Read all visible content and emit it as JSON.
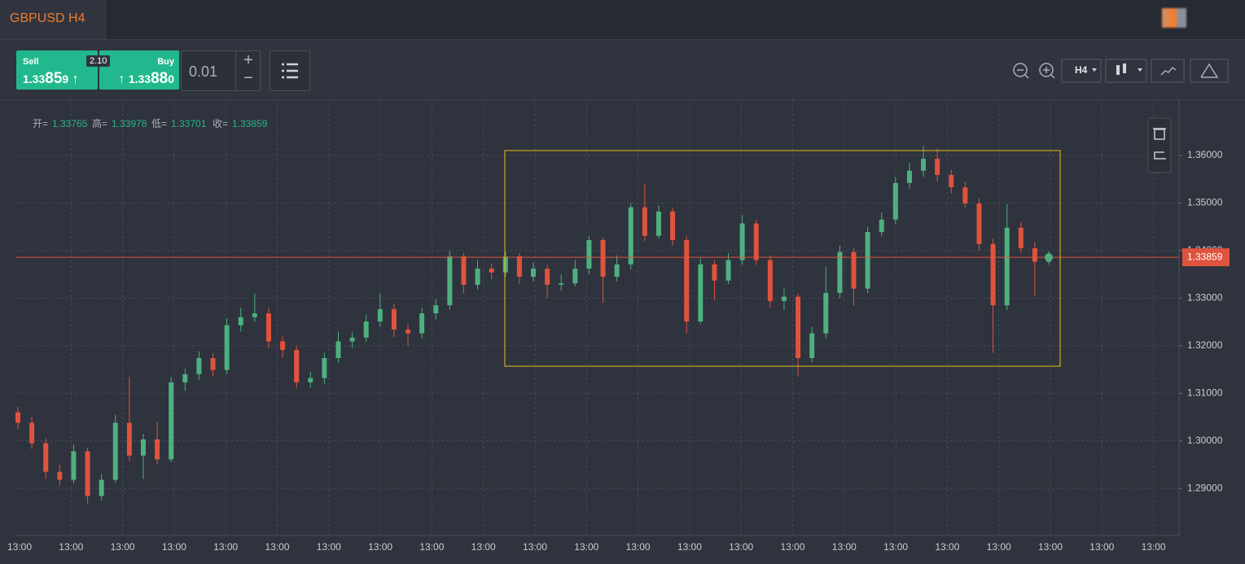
{
  "header": {
    "tab": "GBPUSD H4"
  },
  "trade": {
    "sell_label": "Sell",
    "sell_price": [
      "1.33",
      "85",
      "9"
    ],
    "spread": "2.10",
    "buy_label": "Buy",
    "buy_price": [
      "1.33",
      "88",
      "0"
    ],
    "lot": "0.01",
    "timeframe": "H4"
  },
  "ohlc_info": {
    "open_label": "开=",
    "high_label": "高=",
    "low_label": "低=",
    "close_label": "收="
  },
  "chart_data": {
    "type": "candlestick",
    "x_labels": [
      "13:00",
      "13:00",
      "13:00",
      "13:00",
      "13:00",
      "13:00",
      "13:00",
      "13:00",
      "13:00",
      "13:00",
      "13:00",
      "13:00",
      "13:00",
      "13:00",
      "13:00",
      "13:00",
      "13:00",
      "13:00",
      "13:00",
      "13:00",
      "13:00",
      "13:00",
      "13:00"
    ],
    "open": [
      1.306,
      1.3038,
      1.2995,
      1.2935,
      1.2918,
      1.2978,
      1.2884,
      1.2918,
      1.3038,
      1.2969,
      1.3003,
      1.2961,
      1.3123,
      1.314,
      1.3174,
      1.3149,
      1.3243,
      1.326,
      1.3268,
      1.3209,
      1.3191,
      1.3123,
      1.3132,
      1.3174,
      1.3209,
      1.3217,
      1.3251,
      1.3277,
      1.3234,
      1.3226,
      1.3268,
      1.3285,
      1.3388,
      1.3328,
      1.3362,
      1.3354,
      1.3388,
      1.3345,
      1.3362,
      1.3328,
      1.3331,
      1.3362,
      1.3422,
      1.3345,
      1.3371,
      1.3491,
      1.3431,
      1.3482,
      1.3422,
      1.3251,
      1.3371,
      1.3337,
      1.338,
      1.3457,
      1.338,
      1.3294,
      1.3303,
      1.3174,
      1.3226,
      1.3311,
      1.3397,
      1.332,
      1.3439,
      1.3465,
      1.3542,
      1.3568,
      1.3593,
      1.3559,
      1.3533,
      1.3499,
      1.3414,
      1.3285,
      1.3448,
      1.3405,
      1.33765
    ],
    "high": [
      1.3072,
      1.305,
      1.3005,
      1.295,
      1.2992,
      1.2985,
      1.293,
      1.3055,
      1.3135,
      1.3015,
      1.304,
      1.3135,
      1.3152,
      1.3188,
      1.3185,
      1.3258,
      1.328,
      1.331,
      1.328,
      1.322,
      1.32,
      1.3145,
      1.3185,
      1.323,
      1.3228,
      1.3265,
      1.331,
      1.3288,
      1.3245,
      1.328,
      1.3298,
      1.34,
      1.3395,
      1.338,
      1.3372,
      1.3398,
      1.3395,
      1.3375,
      1.337,
      1.335,
      1.338,
      1.343,
      1.3428,
      1.339,
      1.35,
      1.354,
      1.3495,
      1.349,
      1.343,
      1.3385,
      1.338,
      1.3395,
      1.3475,
      1.3465,
      1.339,
      1.332,
      1.331,
      1.324,
      1.3365,
      1.341,
      1.3405,
      1.345,
      1.348,
      1.3555,
      1.3585,
      1.362,
      1.3615,
      1.357,
      1.3545,
      1.351,
      1.3425,
      1.3498,
      1.346,
      1.3418,
      1.33978
    ],
    "low": [
      1.3025,
      1.2983,
      1.292,
      1.2905,
      1.291,
      1.2868,
      1.2875,
      1.2912,
      1.2958,
      1.292,
      1.295,
      1.2955,
      1.3105,
      1.3128,
      1.3135,
      1.314,
      1.323,
      1.325,
      1.3195,
      1.3175,
      1.311,
      1.3112,
      1.312,
      1.3165,
      1.3195,
      1.3208,
      1.324,
      1.3218,
      1.32,
      1.3215,
      1.3255,
      1.3275,
      1.331,
      1.3318,
      1.334,
      1.3345,
      1.333,
      1.3335,
      1.33,
      1.3315,
      1.3325,
      1.335,
      1.329,
      1.3335,
      1.336,
      1.342,
      1.3425,
      1.341,
      1.3225,
      1.3245,
      1.3295,
      1.333,
      1.337,
      1.337,
      1.328,
      1.3275,
      1.3135,
      1.3165,
      1.3215,
      1.33,
      1.3285,
      1.331,
      1.343,
      1.3455,
      1.353,
      1.3555,
      1.3545,
      1.352,
      1.349,
      1.34,
      1.3185,
      1.3275,
      1.3395,
      1.3305,
      1.33701
    ],
    "close": [
      1.3038,
      1.2995,
      1.2935,
      1.2918,
      1.2978,
      1.2884,
      1.2918,
      1.3038,
      1.2969,
      1.3003,
      1.2961,
      1.3123,
      1.314,
      1.3174,
      1.3149,
      1.3243,
      1.326,
      1.3268,
      1.3209,
      1.3191,
      1.3123,
      1.3132,
      1.3174,
      1.3209,
      1.3217,
      1.3251,
      1.3277,
      1.3234,
      1.3226,
      1.3268,
      1.3285,
      1.3388,
      1.3328,
      1.3362,
      1.3354,
      1.3388,
      1.3345,
      1.3362,
      1.3328,
      1.3331,
      1.3362,
      1.3422,
      1.3345,
      1.3371,
      1.3491,
      1.3431,
      1.3482,
      1.3422,
      1.3251,
      1.3371,
      1.3337,
      1.338,
      1.3457,
      1.338,
      1.3294,
      1.3303,
      1.3174,
      1.3226,
      1.3311,
      1.3397,
      1.332,
      1.3439,
      1.3465,
      1.3542,
      1.3568,
      1.3593,
      1.3559,
      1.3533,
      1.3499,
      1.3414,
      1.3285,
      1.3448,
      1.3405,
      1.33765,
      1.33859
    ],
    "ylim": [
      1.2801,
      1.3718
    ],
    "yticks": [
      {
        "value": 1.29,
        "label": "1.29000"
      },
      {
        "value": 1.3,
        "label": "1.30000"
      },
      {
        "value": 1.31,
        "label": "1.31000"
      },
      {
        "value": 1.32,
        "label": "1.32000"
      },
      {
        "value": 1.33,
        "label": "1.33000"
      },
      {
        "value": 1.34,
        "label": "1.34000"
      },
      {
        "value": 1.35,
        "label": "1.35000"
      },
      {
        "value": 1.36,
        "label": "1.36000"
      }
    ],
    "grid": true,
    "up_color": "#4fb07f",
    "down_color": "#e0533d",
    "last_price_color": "#e0533d"
  }
}
